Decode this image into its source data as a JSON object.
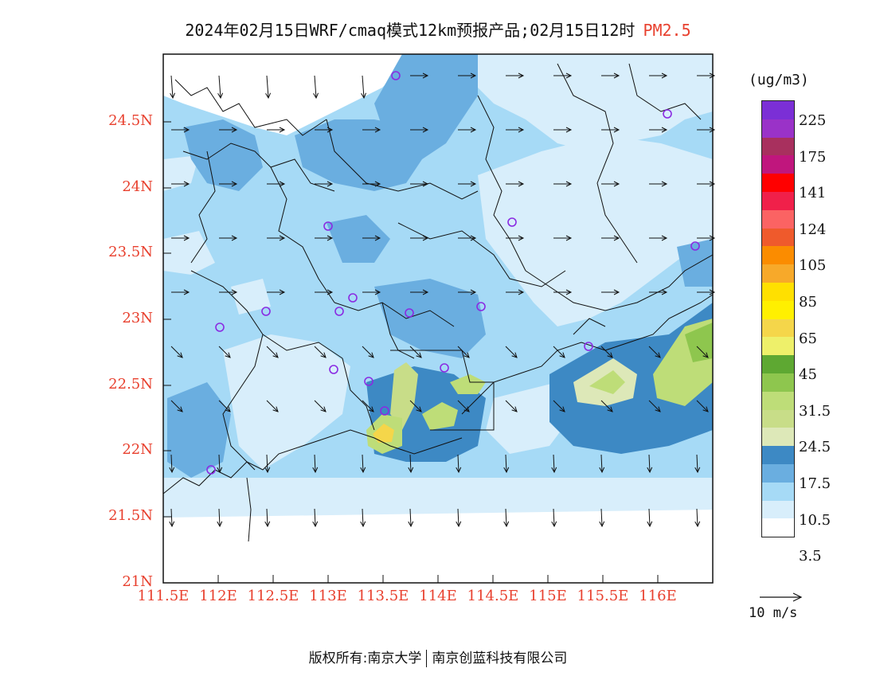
{
  "title": {
    "main": "2024年02月15日WRF/cmaq模式12km预报产品;02月15日12时",
    "pollutant": "PM2.5"
  },
  "axes": {
    "lat_labels": [
      "24.5N",
      "24N",
      "23.5N",
      "23N",
      "22.5N",
      "22N",
      "21.5N",
      "21N"
    ],
    "lon_labels": [
      "111.5E",
      "112E",
      "112.5E",
      "113E",
      "113.5E",
      "114E",
      "114.5E",
      "115E",
      "115.5E",
      "116E"
    ]
  },
  "colorbar": {
    "unit": "(ug/m3)",
    "labels": [
      "225",
      "175",
      "141",
      "124",
      "105",
      "85",
      "65",
      "45",
      "31.5",
      "24.5",
      "17.5",
      "10.5",
      "3.5"
    ],
    "colors": [
      "#7b2fd6",
      "#9a32c8",
      "#a8305e",
      "#c0167d",
      "#ff0000",
      "#f0204a",
      "#fb6363",
      "#ef5a2c",
      "#fb8c00",
      "#f7a92a",
      "#ffe000",
      "#fff000",
      "#f5d64a",
      "#eef06a",
      "#5ea832",
      "#8ec64e",
      "#bedd78",
      "#c8dd88",
      "#dde8b8",
      "#3d89c4",
      "#6aaee0",
      "#a6daf6",
      "#d8eefb",
      "#ffffff"
    ]
  },
  "wind_reference": {
    "label": "10 m/s"
  },
  "footer": {
    "left": "版权所有:南京大学",
    "right": "南京创蓝科技有限公司"
  }
}
